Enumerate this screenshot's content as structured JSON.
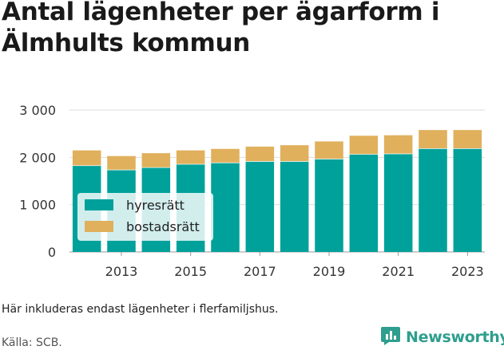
{
  "title": "Antal lägenheter per ägarform i Älmhults kommun",
  "note": "Här inkluderas endast lägenheter i flerfamiljshus.",
  "source": "Källa: SCB.",
  "brand": {
    "name": "Newsworthy",
    "icon": "newsworthy-logo-icon",
    "color": "#2e9e8e"
  },
  "chart_data": {
    "type": "bar",
    "stacked": true,
    "categories": [
      "2012",
      "2013",
      "2014",
      "2015",
      "2016",
      "2017",
      "2018",
      "2019",
      "2020",
      "2021",
      "2022",
      "2023"
    ],
    "series": [
      {
        "name": "hyresrätt",
        "color": "#00a19a",
        "values": [
          1830,
          1740,
          1790,
          1860,
          1890,
          1920,
          1920,
          1970,
          2070,
          2080,
          2190,
          2190
        ]
      },
      {
        "name": "bostadsrätt",
        "color": "#e0b05c",
        "values": [
          330,
          300,
          310,
          300,
          300,
          320,
          350,
          380,
          400,
          400,
          400,
          400
        ]
      }
    ],
    "y_ticks": [
      "0",
      "1 000",
      "2 000",
      "3 000"
    ],
    "y_tick_values": [
      0,
      1000,
      2000,
      3000
    ],
    "x_tick_labels": [
      "2013",
      "2015",
      "2017",
      "2019",
      "2021",
      "2023"
    ],
    "ylim": [
      0,
      3000
    ],
    "grid": true,
    "legend_position": "left"
  }
}
